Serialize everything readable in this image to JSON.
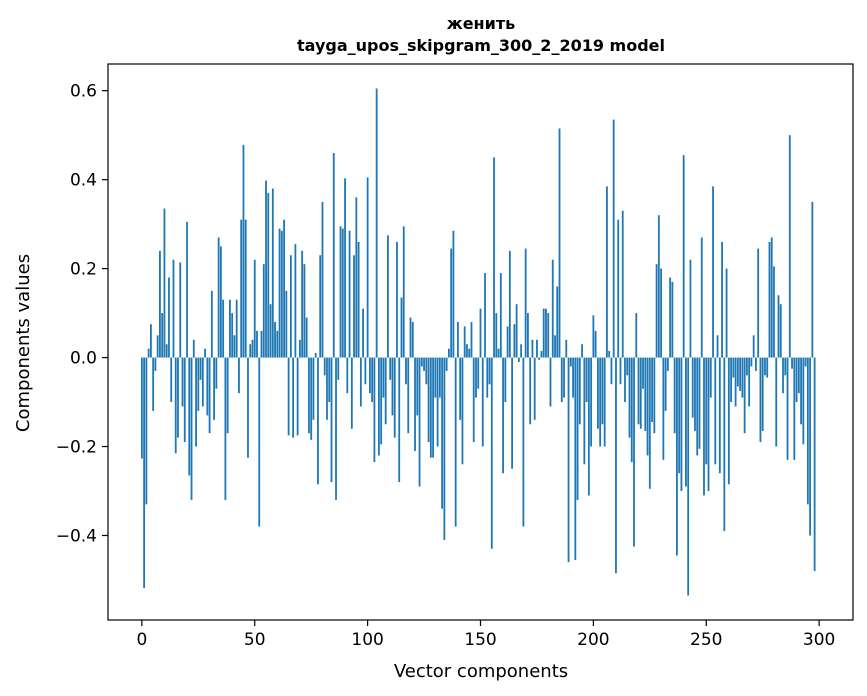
{
  "chart_data": {
    "type": "bar",
    "title": "женить",
    "subtitle": "tayga_upos_skipgram_300_2_2019 model",
    "xlabel": "Vector components",
    "ylabel": "Components values",
    "xlim": [
      -15,
      315
    ],
    "ylim": [
      -0.59,
      0.66
    ],
    "xticks": [
      0,
      50,
      100,
      150,
      200,
      250,
      300
    ],
    "xtick_labels": [
      "0",
      "50",
      "100",
      "150",
      "200",
      "250",
      "300"
    ],
    "yticks": [
      -0.4,
      -0.2,
      0.0,
      0.2,
      0.4,
      0.6
    ],
    "ytick_labels": [
      "−0.4",
      "−0.2",
      "0.0",
      "0.2",
      "0.4",
      "0.6"
    ],
    "grid": false,
    "bar_color": "#1f77b4",
    "values": [
      -0.227,
      -0.518,
      -0.33,
      0.02,
      0.075,
      -0.12,
      -0.03,
      0.05,
      0.24,
      0.1,
      0.335,
      0.03,
      0.18,
      -0.1,
      0.22,
      -0.215,
      -0.18,
      0.214,
      -0.11,
      -0.19,
      0.305,
      -0.265,
      -0.32,
      0.04,
      -0.2,
      -0.12,
      -0.05,
      -0.11,
      0.02,
      -0.13,
      -0.17,
      0.15,
      -0.14,
      -0.07,
      0.27,
      0.25,
      0.13,
      -0.32,
      -0.17,
      0.13,
      0.1,
      0.05,
      0.13,
      -0.08,
      0.31,
      0.478,
      0.31,
      -0.225,
      0.03,
      0.04,
      0.22,
      0.06,
      -0.38,
      0.06,
      0.21,
      0.398,
      0.37,
      0.12,
      0.38,
      0.08,
      0.06,
      0.29,
      0.285,
      0.31,
      0.15,
      -0.175,
      0.23,
      -0.18,
      0.255,
      -0.175,
      0.04,
      0.24,
      0.21,
      0.09,
      -0.17,
      -0.185,
      -0.14,
      0.01,
      -0.285,
      0.23,
      0.35,
      -0.04,
      -0.14,
      -0.1,
      -0.28,
      0.46,
      -0.32,
      -0.05,
      0.295,
      0.29,
      0.403,
      -0.08,
      0.285,
      -0.16,
      0.23,
      0.36,
      0.26,
      -0.11,
      0.11,
      -0.06,
      0.405,
      -0.08,
      -0.1,
      -0.235,
      0.605,
      -0.22,
      -0.195,
      -0.09,
      -0.15,
      0.275,
      -0.05,
      -0.13,
      -0.18,
      0.26,
      -0.28,
      0.135,
      0.295,
      -0.06,
      -0.17,
      0.09,
      0.08,
      -0.21,
      -0.13,
      -0.29,
      -0.02,
      -0.03,
      -0.06,
      -0.19,
      -0.225,
      -0.225,
      -0.09,
      -0.2,
      -0.09,
      -0.34,
      -0.41,
      -0.03,
      0.02,
      0.245,
      0.285,
      -0.38,
      0.08,
      -0.14,
      -0.24,
      0.07,
      0.03,
      0.02,
      0.08,
      -0.19,
      -0.09,
      -0.07,
      0.11,
      -0.2,
      0.19,
      -0.09,
      -0.06,
      -0.43,
      0.45,
      0.1,
      0.02,
      0.19,
      -0.26,
      -0.1,
      0.07,
      0.24,
      -0.25,
      0.075,
      0.12,
      -0.01,
      0.03,
      -0.38,
      0.245,
      0.1,
      -0.15,
      0.04,
      -0.14,
      0.04,
      -0.005,
      0.015,
      0.11,
      0.11,
      0.1,
      -0.11,
      0.22,
      0.05,
      0.16,
      0.515,
      -0.1,
      -0.09,
      0.04,
      -0.46,
      -0.02,
      -0.09,
      -0.455,
      -0.32,
      -0.15,
      0.03,
      -0.24,
      -0.1,
      -0.31,
      -0.2,
      0.095,
      0.06,
      -0.16,
      -0.2,
      -0.15,
      -0.2,
      0.385,
      0.015,
      -0.06,
      0.535,
      -0.485,
      0.31,
      -0.06,
      0.33,
      -0.1,
      -0.04,
      -0.18,
      -0.235,
      -0.425,
      0.1,
      -0.15,
      -0.16,
      -0.07,
      -0.165,
      -0.22,
      -0.295,
      -0.145,
      -0.17,
      0.21,
      0.32,
      0.2,
      -0.23,
      -0.12,
      -0.03,
      0.18,
      0.17,
      -0.17,
      -0.445,
      -0.26,
      -0.3,
      0.455,
      -0.29,
      -0.535,
      0.22,
      -0.135,
      -0.165,
      -0.22,
      -0.205,
      0.27,
      -0.31,
      -0.24,
      -0.3,
      -0.09,
      0.385,
      -0.24,
      0.05,
      -0.26,
      0.26,
      -0.39,
      0.2,
      -0.285,
      -0.1,
      -0.045,
      -0.11,
      -0.065,
      -0.075,
      -0.09,
      -0.17,
      -0.04,
      -0.11,
      -0.02,
      0.05,
      -0.03,
      0.245,
      -0.19,
      -0.165,
      -0.04,
      -0.045,
      0.26,
      0.27,
      0.205,
      -0.2,
      0.14,
      0.12,
      -0.08,
      -0.04,
      -0.23,
      0.5,
      -0.025,
      -0.23,
      -0.1,
      -0.08,
      -0.15,
      -0.195,
      -0.02,
      -0.33,
      -0.4,
      0.35,
      -0.48
    ]
  }
}
